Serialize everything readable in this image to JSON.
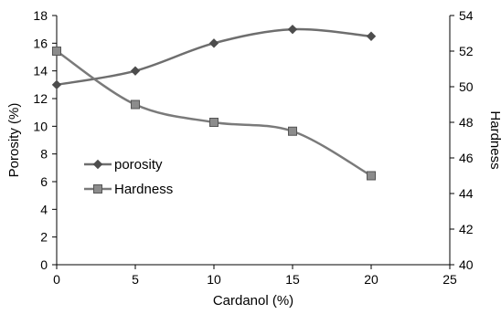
{
  "chart_data": {
    "type": "line",
    "title": "",
    "xlabel": "Cardanol (%)",
    "ylabel_left": "Porosity (%)",
    "ylabel_right": "Hardness",
    "x_ticks": [
      "0",
      "5",
      "10",
      "15",
      "20",
      "25"
    ],
    "y_left_ticks": [
      "0",
      "2",
      "4",
      "6",
      "8",
      "10",
      "12",
      "14",
      "16",
      "18"
    ],
    "y_right_ticks": [
      "40",
      "42",
      "44",
      "46",
      "48",
      "50",
      "52",
      "54"
    ],
    "xlim": [
      0,
      25
    ],
    "ylim_left": [
      0,
      18
    ],
    "ylim_right": [
      40,
      54
    ],
    "grid": false,
    "legend_position": "middle-left",
    "series": [
      {
        "name": "porosity",
        "axis": "left",
        "marker": "diamond",
        "color": "#6e6e6e",
        "x": [
          0,
          5,
          10,
          15,
          20
        ],
        "y": [
          13,
          14,
          16,
          17,
          16.5
        ]
      },
      {
        "name": "Hardness",
        "axis": "right",
        "marker": "square",
        "color": "#7a7a7a",
        "x": [
          0,
          5,
          10,
          15,
          20
        ],
        "y": [
          52,
          49,
          48,
          47.5,
          45
        ]
      }
    ]
  }
}
